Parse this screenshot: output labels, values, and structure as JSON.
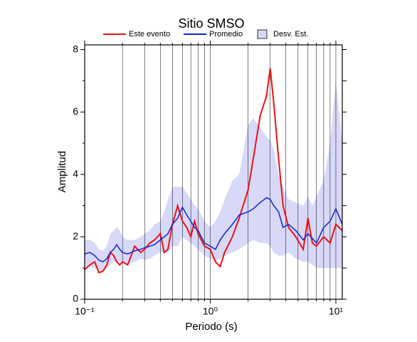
{
  "chart_data": {
    "type": "line",
    "title": "Sitio SMSO",
    "x_label": "Periodo (s)",
    "y_label": "Amplitud",
    "xscale": "log",
    "xlim": [
      0.1,
      11.25
    ],
    "ylim": [
      0,
      8.15
    ],
    "xticks": [
      {
        "value": 0.1,
        "label": "10⁻¹"
      },
      {
        "value": 1,
        "label": "10⁰"
      },
      {
        "value": 10,
        "label": "10¹"
      }
    ],
    "xminor": [
      0.2,
      0.3,
      0.4,
      0.5,
      0.6,
      0.7,
      0.8,
      0.9,
      2,
      3,
      4,
      5,
      6,
      7,
      8,
      9
    ],
    "yticks": [
      0,
      2,
      4,
      6,
      8
    ],
    "yminor": [
      1,
      3,
      5,
      7
    ],
    "grid": true,
    "x": [
      0.1,
      0.11,
      0.12,
      0.13,
      0.14,
      0.15,
      0.16,
      0.17,
      0.18,
      0.19,
      0.2,
      0.22,
      0.25,
      0.28,
      0.3,
      0.33,
      0.36,
      0.4,
      0.43,
      0.46,
      0.5,
      0.55,
      0.6,
      0.65,
      0.7,
      0.75,
      0.8,
      0.9,
      1.0,
      1.1,
      1.2,
      1.3,
      1.5,
      1.7,
      2.0,
      2.2,
      2.5,
      2.8,
      3.0,
      3.2,
      3.5,
      3.8,
      4.2,
      4.8,
      5.5,
      6.0,
      6.5,
      7.0,
      8.0,
      9.0,
      10.0,
      11.25
    ],
    "band": {
      "name": "Desv. Est.",
      "color": "#d8d8f8",
      "low": [
        1.0,
        1.05,
        1.0,
        0.95,
        0.9,
        1.0,
        1.1,
        1.2,
        1.2,
        1.2,
        1.2,
        1.1,
        1.2,
        1.3,
        1.25,
        1.3,
        1.4,
        1.5,
        1.5,
        1.5,
        1.7,
        1.7,
        2.0,
        1.9,
        1.8,
        1.7,
        1.6,
        1.4,
        1.3,
        1.2,
        1.3,
        1.4,
        1.5,
        1.6,
        1.8,
        1.9,
        1.8,
        1.8,
        1.7,
        1.5,
        1.4,
        1.4,
        1.5,
        1.3,
        1.2,
        1.2,
        1.1,
        1.0,
        1.0,
        1.0,
        1.0,
        1.0
      ],
      "high": [
        1.9,
        1.9,
        1.8,
        1.6,
        1.55,
        1.7,
        2.1,
        2.2,
        2.3,
        2.2,
        2.0,
        1.9,
        1.9,
        2.0,
        2.1,
        2.2,
        2.4,
        2.5,
        2.8,
        3.2,
        3.6,
        3.6,
        3.6,
        3.4,
        3.2,
        3.0,
        2.9,
        2.5,
        2.3,
        2.5,
        2.8,
        3.2,
        3.8,
        4.0,
        5.6,
        5.8,
        5.5,
        5.2,
        5.1,
        4.8,
        4.0,
        3.6,
        3.2,
        3.1,
        3.0,
        3.3,
        3.0,
        3.3,
        3.8,
        5.0,
        7.0,
        5.0
      ]
    },
    "series": [
      {
        "name": "Este evento",
        "color": "#ee1111",
        "values": [
          0.95,
          1.1,
          1.2,
          0.85,
          0.9,
          1.1,
          1.5,
          1.4,
          1.2,
          1.1,
          1.2,
          1.1,
          1.7,
          1.5,
          1.6,
          1.8,
          1.9,
          2.1,
          1.5,
          1.6,
          2.4,
          3.0,
          2.5,
          2.3,
          2.0,
          2.5,
          2.1,
          1.7,
          1.6,
          1.2,
          1.05,
          1.5,
          2.0,
          2.6,
          3.5,
          4.5,
          5.9,
          6.5,
          7.4,
          6.3,
          4.5,
          3.0,
          2.3,
          2.0,
          1.6,
          2.6,
          1.8,
          1.7,
          2.0,
          1.8,
          2.4,
          2.2
        ]
      },
      {
        "name": "Promedio",
        "color": "#1122dd",
        "values": [
          1.45,
          1.5,
          1.4,
          1.25,
          1.2,
          1.3,
          1.5,
          1.6,
          1.75,
          1.6,
          1.5,
          1.45,
          1.55,
          1.6,
          1.65,
          1.7,
          1.75,
          1.9,
          2.0,
          2.1,
          2.4,
          2.6,
          2.95,
          2.7,
          2.5,
          2.3,
          2.2,
          1.8,
          1.7,
          1.6,
          1.9,
          2.1,
          2.4,
          2.7,
          2.8,
          2.9,
          3.1,
          3.25,
          3.2,
          3.0,
          2.8,
          2.3,
          2.4,
          2.2,
          1.9,
          2.1,
          1.95,
          1.8,
          2.3,
          2.5,
          2.9,
          2.4
        ]
      }
    ]
  }
}
